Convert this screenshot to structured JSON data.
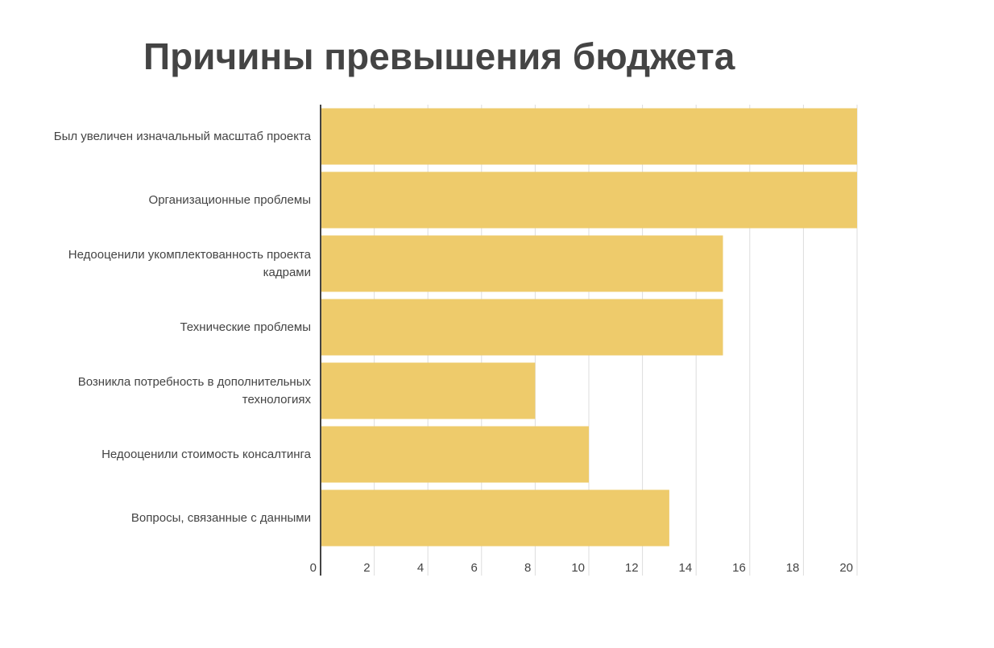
{
  "chart_data": {
    "type": "bar",
    "orientation": "horizontal",
    "title": "Причины превышения бюджета",
    "categories": [
      "Был увеличен изначальный масштаб проекта",
      "Организационные проблемы",
      "Недооценили укомплектованность проекта кадрами",
      "Технические проблемы",
      "Возникла потребность в дополнительных технологиях",
      "Недооценили стоимость консалтинга",
      "Вопросы, связанные с данными"
    ],
    "values": [
      20,
      20,
      15,
      15,
      8,
      10,
      13
    ],
    "color": "#eecb6b",
    "xlim": [
      0,
      20
    ],
    "xticks": [
      0,
      2,
      4,
      6,
      8,
      10,
      12,
      14,
      16,
      18,
      20
    ],
    "grid": true
  }
}
